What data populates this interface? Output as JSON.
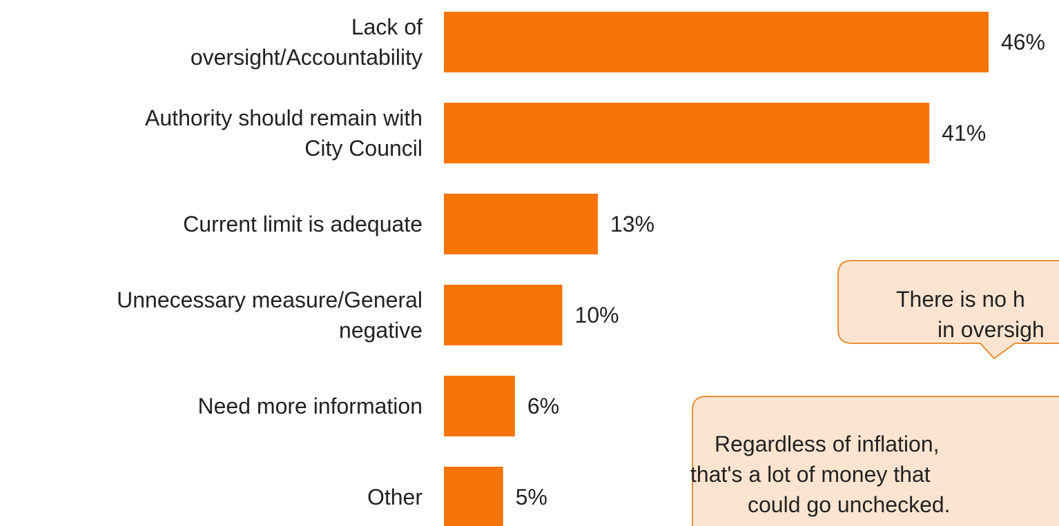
{
  "chart_data": {
    "type": "bar",
    "orientation": "horizontal",
    "categories": [
      "Lack of\noversight/Accountability",
      "Authority should remain with\nCity Council",
      "Current limit is adequate",
      "Unnecessary measure/General\nnegative",
      "Need more information",
      "Other"
    ],
    "values": [
      46,
      41,
      13,
      10,
      6,
      5
    ],
    "value_labels": [
      "46%",
      "41%",
      "13%",
      "10%",
      "6%",
      "5%"
    ],
    "color": "#f77408",
    "annotations": [
      {
        "lines": [
          "There is no h",
          "in oversigh"
        ]
      },
      {
        "lines": [
          "Regardless of inflation,",
          "that's a lot of money that",
          "could go unchecked."
        ]
      }
    ]
  }
}
